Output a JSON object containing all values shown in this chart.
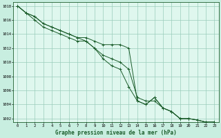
{
  "title": "Graphe pression niveau de la mer (hPa)",
  "background_color": "#c8eee0",
  "plot_bg_color": "#dff7ee",
  "grid_color": "#99ccbb",
  "line_color": "#1a5c2a",
  "xlim": [
    0,
    23
  ],
  "ylim": [
    1001.5,
    1018.5
  ],
  "xticks": [
    0,
    1,
    2,
    3,
    4,
    5,
    6,
    7,
    8,
    9,
    10,
    11,
    12,
    13,
    14,
    15,
    16,
    17,
    18,
    19,
    20,
    21,
    22,
    23
  ],
  "yticks": [
    1002,
    1004,
    1006,
    1008,
    1010,
    1012,
    1014,
    1016,
    1018
  ],
  "series": [
    [
      1018.0,
      1017.0,
      1016.5,
      1015.5,
      1015.0,
      1014.5,
      1014.0,
      1013.5,
      1013.5,
      1013.0,
      1012.5,
      1012.5,
      1012.5,
      1012.0,
      1004.5,
      1004.0,
      1005.0,
      1003.5,
      1003.0,
      1002.0,
      1002.0,
      1001.8,
      1001.5,
      1001.5
    ],
    [
      1018.0,
      1017.0,
      1016.0,
      1015.0,
      1014.5,
      1014.0,
      1013.5,
      1013.0,
      1013.0,
      1012.0,
      1011.0,
      1010.5,
      1010.0,
      1009.0,
      1005.0,
      1004.5,
      1004.5,
      1003.5,
      1003.0,
      1002.0,
      1002.0,
      1001.8,
      1001.5,
      1001.5
    ],
    [
      1018.0,
      1017.0,
      1016.5,
      1015.5,
      1015.0,
      1014.5,
      1014.0,
      1013.5,
      1013.0,
      1012.0,
      1010.5,
      1009.5,
      1009.0,
      1006.5,
      1004.5,
      1004.0,
      1005.0,
      1003.5,
      1003.0,
      1002.0,
      1002.0,
      1001.8,
      1001.5,
      1001.5
    ]
  ]
}
